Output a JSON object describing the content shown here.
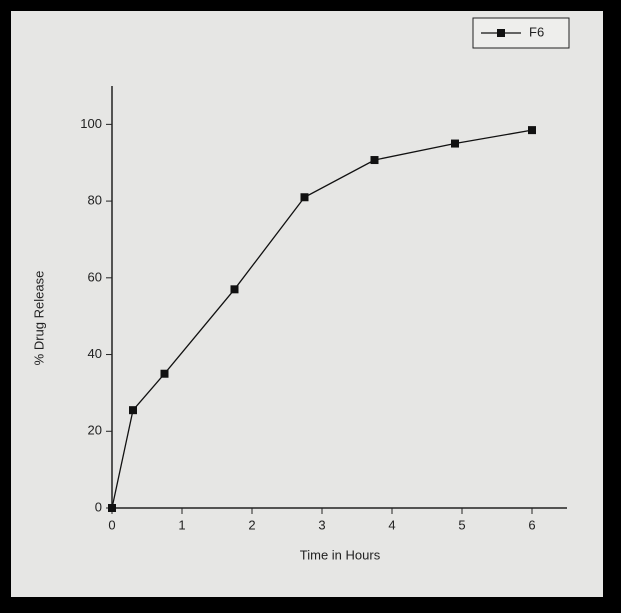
{
  "chart_data": {
    "type": "line",
    "x_label": "Time in Hours",
    "y_label": "% Drug Release",
    "series": [
      {
        "name": "F6",
        "color": "#111111",
        "x": [
          0,
          0.3,
          0.75,
          1.75,
          2.75,
          3.75,
          4.9,
          6
        ],
        "values": [
          0,
          25.5,
          35,
          57,
          81,
          90.7,
          95,
          98.5
        ]
      }
    ],
    "xlim": [
      0,
      6.5
    ],
    "xticks": [
      0,
      1,
      2,
      3,
      4,
      5,
      6
    ],
    "ylim": [
      0,
      110
    ],
    "yticks": [
      0,
      20,
      40,
      60,
      80,
      100
    ],
    "grid": false,
    "legend": "upper right"
  }
}
